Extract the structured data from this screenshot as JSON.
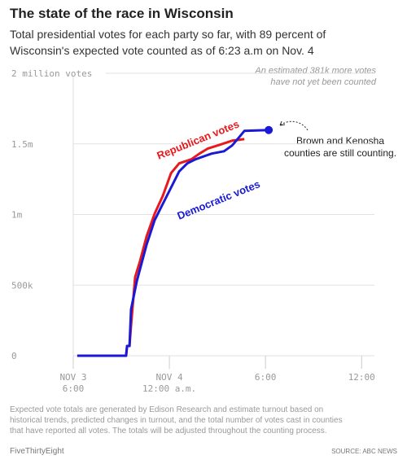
{
  "chart_data": {
    "type": "line",
    "title": "The state of the race in Wisconsin",
    "subtitle": [
      "Total presidential votes for each party so far, with 89 percent of",
      "Wisconsin's expected vote counted as of 6:23 a.m on Nov. 4"
    ],
    "annotations": {
      "estimate": [
        "An estimated 381k more votes",
        "have not yet been counted"
      ],
      "counting": [
        "Brown and Kenosha",
        "counties are still counting."
      ]
    },
    "xlim": [
      0,
      18.8
    ],
    "xticks": [
      {
        "value": 0,
        "label": "NOV 3\n6:00"
      },
      {
        "value": 6,
        "label": "NOV 4\n12:00 a.m."
      },
      {
        "value": 12,
        "label": "6:00"
      },
      {
        "value": 18,
        "label": "12:00"
      }
    ],
    "ylim": [
      0,
      2000000
    ],
    "yticks": [
      {
        "value": 0,
        "label": "0"
      },
      {
        "value": 500000,
        "label": "500k"
      },
      {
        "value": 1000000,
        "label": "1m"
      },
      {
        "value": 1500000,
        "label": "1.5m"
      },
      {
        "value": 2000000,
        "label": "2 million votes"
      }
    ],
    "grid": true,
    "series": [
      {
        "name": "Republican votes",
        "color": "#e8191d",
        "x": [
          0.25,
          3.3,
          3.36,
          3.51,
          3.61,
          3.86,
          4.17,
          4.58,
          5.08,
          5.59,
          6.1,
          6.61,
          7.37,
          7.88,
          8.39,
          9.15,
          9.92,
          10.68
        ],
        "values": [
          0,
          0,
          69000,
          69000,
          213000,
          557000,
          672000,
          845000,
          1006000,
          1132000,
          1293000,
          1362000,
          1391000,
          1431000,
          1466000,
          1494000,
          1523000,
          1534000
        ]
      },
      {
        "name": "Democratic votes",
        "color": "#1a1ad6",
        "x": [
          0.25,
          3.3,
          3.36,
          3.51,
          3.61,
          3.97,
          4.17,
          4.58,
          5.08,
          5.59,
          6.1,
          6.61,
          7.12,
          7.63,
          8.64,
          9.41,
          9.92,
          10.47,
          10.68,
          12.2
        ],
        "values": [
          0,
          0,
          69000,
          69000,
          328000,
          529000,
          615000,
          787000,
          960000,
          1075000,
          1190000,
          1305000,
          1362000,
          1391000,
          1431000,
          1448000,
          1489000,
          1563000,
          1592000,
          1598000
        ]
      }
    ],
    "note": [
      "Expected vote totals are generated by Edison Research and estimate turnout based on",
      "historical trends, predicted changes in turnout, and the total number of votes cast in counties",
      "that have reported all votes. The totals will be adjusted throughout the counting process."
    ],
    "brand": "FiveThirtyEight",
    "source": "SOURCE: ABC NEWS"
  }
}
